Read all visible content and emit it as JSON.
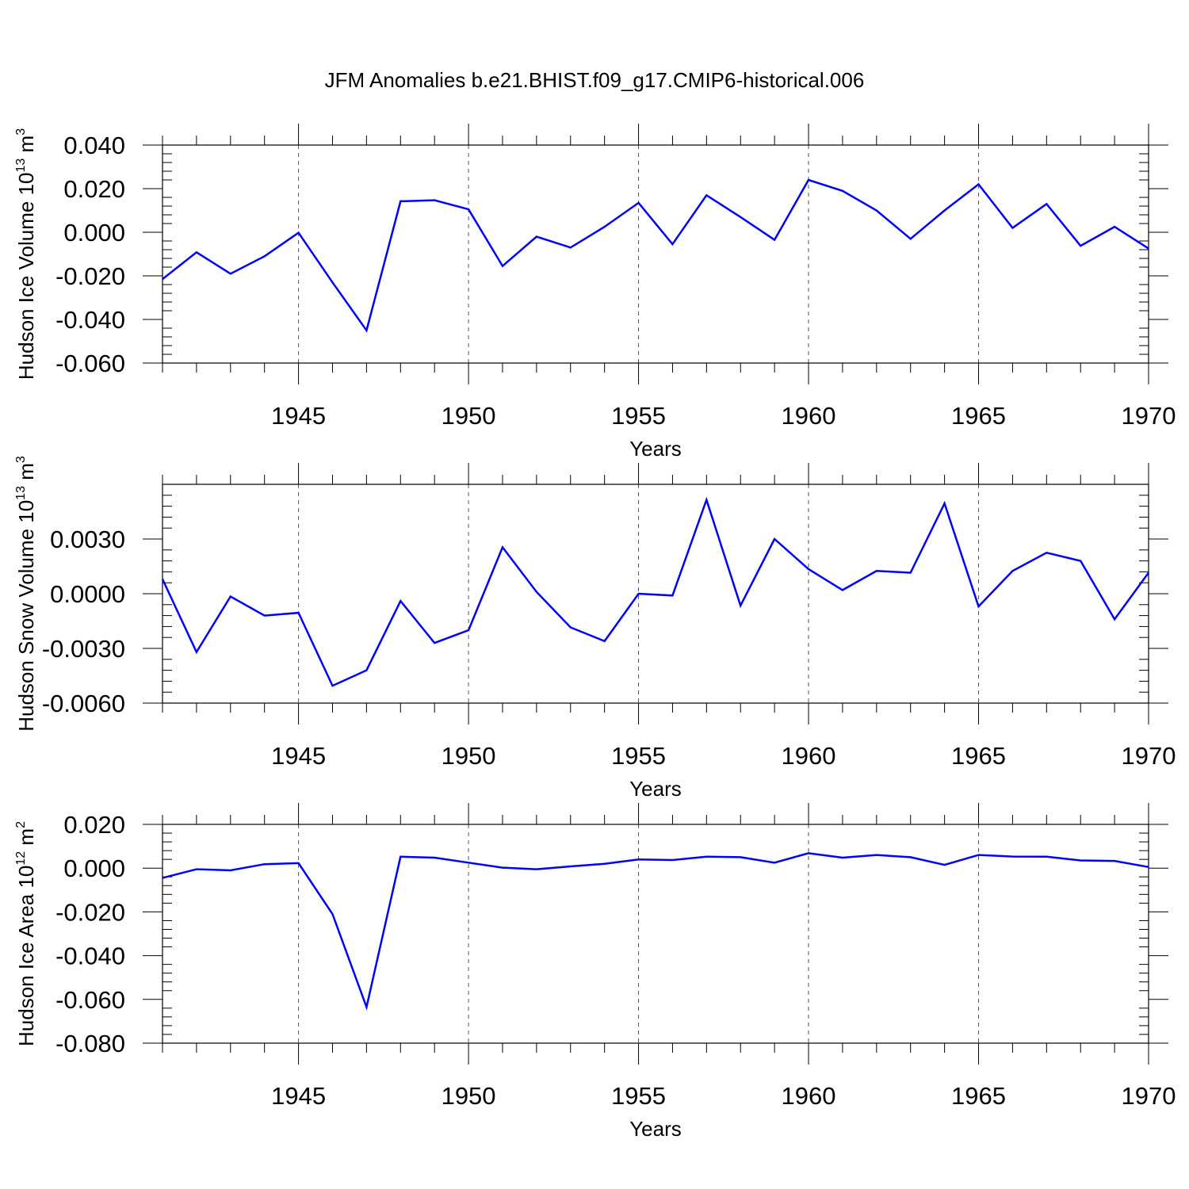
{
  "title": "JFM Anomalies b.e21.BHIST.f09_g17.CMIP6-historical.006",
  "chart_data": [
    {
      "type": "line",
      "ylabel": "Hudson Ice Volume 10",
      "ylabel_exp": "13",
      "ylabel_unit": "m",
      "ylabel_unit_exp": "3",
      "xlabel": "Years",
      "xlim": [
        1941,
        1970
      ],
      "ylim": [
        -0.06,
        0.04
      ],
      "yticks": [
        -0.06,
        -0.04,
        -0.02,
        0.0,
        0.02,
        0.04
      ],
      "ytick_labels": [
        "-0.060",
        "-0.040",
        "-0.020",
        "0.000",
        "0.020",
        "0.040"
      ],
      "xticks": [
        1945,
        1950,
        1955,
        1960,
        1965,
        1970
      ],
      "xtick_labels": [
        "1945",
        "1950",
        "1955",
        "1960",
        "1965",
        "1970"
      ],
      "grid_x": [
        1945,
        1950,
        1955,
        1960,
        1965
      ],
      "color": "#0000ff",
      "x": [
        1941,
        1942,
        1943,
        1944,
        1945,
        1946,
        1947,
        1948,
        1949,
        1950,
        1951,
        1952,
        1953,
        1954,
        1955,
        1956,
        1957,
        1958,
        1959,
        1960,
        1961,
        1962,
        1963,
        1964,
        1965,
        1966,
        1967,
        1968,
        1969,
        1970
      ],
      "y": [
        -0.0215,
        -0.0092,
        -0.019,
        -0.011,
        -0.0002,
        -0.023,
        -0.045,
        0.0142,
        0.0147,
        0.0105,
        -0.0155,
        -0.002,
        -0.007,
        0.0025,
        0.0135,
        -0.0055,
        0.017,
        0.007,
        -0.0035,
        0.024,
        0.019,
        0.01,
        -0.003,
        0.01,
        0.022,
        0.002,
        0.013,
        -0.0062,
        0.0025,
        -0.0075
      ]
    },
    {
      "type": "line",
      "ylabel": "Hudson Snow Volume 10",
      "ylabel_exp": "13",
      "ylabel_unit": "m",
      "ylabel_unit_exp": "3",
      "xlabel": "Years",
      "xlim": [
        1941,
        1970
      ],
      "ylim": [
        -0.006,
        0.006
      ],
      "yticks": [
        -0.006,
        -0.003,
        0.0,
        0.003
      ],
      "ytick_labels": [
        "-0.0060",
        "-0.0030",
        "0.0000",
        "0.0030"
      ],
      "xticks": [
        1945,
        1950,
        1955,
        1960,
        1965,
        1970
      ],
      "xtick_labels": [
        "1945",
        "1950",
        "1955",
        "1960",
        "1965",
        "1970"
      ],
      "grid_x": [
        1945,
        1950,
        1955,
        1960,
        1965
      ],
      "color": "#0000ff",
      "x": [
        1941,
        1942,
        1943,
        1944,
        1945,
        1946,
        1947,
        1948,
        1949,
        1950,
        1951,
        1952,
        1953,
        1954,
        1955,
        1956,
        1957,
        1958,
        1959,
        1960,
        1961,
        1962,
        1963,
        1964,
        1965,
        1966,
        1967,
        1968,
        1969,
        1970
      ],
      "y": [
        0.0008,
        -0.0032,
        -0.00015,
        -0.0012,
        -0.00105,
        -0.00505,
        -0.0042,
        -0.0004,
        -0.0027,
        -0.002,
        0.00255,
        0.0001,
        -0.00185,
        -0.0026,
        0.0,
        -0.0001,
        0.00515,
        -0.00065,
        0.003,
        0.00135,
        0.0002,
        0.00125,
        0.00115,
        0.00495,
        -0.0007,
        0.00125,
        0.00225,
        0.0018,
        -0.0014,
        0.00115
      ]
    },
    {
      "type": "line",
      "ylabel": "Hudson Ice Area 10",
      "ylabel_exp": "12",
      "ylabel_unit": "m",
      "ylabel_unit_exp": "2",
      "xlabel": "Years",
      "xlim": [
        1941,
        1970
      ],
      "ylim": [
        -0.08,
        0.02
      ],
      "yticks": [
        -0.08,
        -0.06,
        -0.04,
        -0.02,
        0.0,
        0.02
      ],
      "ytick_labels": [
        "-0.080",
        "-0.060",
        "-0.040",
        "-0.020",
        "0.000",
        "0.020"
      ],
      "xticks": [
        1945,
        1950,
        1955,
        1960,
        1965,
        1970
      ],
      "xtick_labels": [
        "1945",
        "1950",
        "1955",
        "1960",
        "1965",
        "1970"
      ],
      "grid_x": [
        1945,
        1950,
        1955,
        1960,
        1965
      ],
      "color": "#0000ff",
      "x": [
        1941,
        1942,
        1943,
        1944,
        1945,
        1946,
        1947,
        1948,
        1949,
        1950,
        1951,
        1952,
        1953,
        1954,
        1955,
        1956,
        1957,
        1958,
        1959,
        1960,
        1961,
        1962,
        1963,
        1964,
        1965,
        1966,
        1967,
        1968,
        1969,
        1970
      ],
      "y": [
        -0.0045,
        -0.0005,
        -0.001,
        0.0018,
        0.0023,
        -0.021,
        -0.0635,
        0.0052,
        0.0048,
        0.0025,
        0.0002,
        -0.0005,
        0.0008,
        0.002,
        0.004,
        0.0037,
        0.0052,
        0.005,
        0.0025,
        0.0068,
        0.0048,
        0.006,
        0.005,
        0.0015,
        0.006,
        0.0053,
        0.0052,
        0.0035,
        0.0033,
        0.0005
      ]
    }
  ]
}
